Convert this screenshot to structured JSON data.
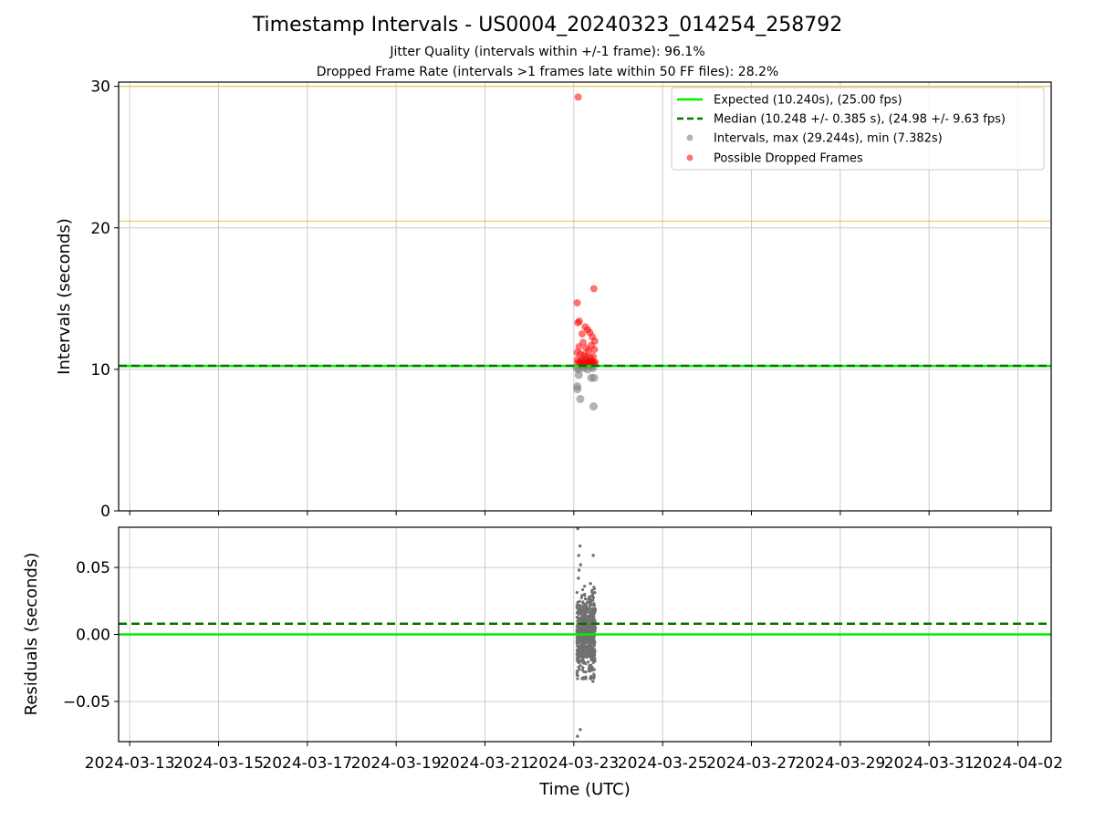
{
  "figure": {
    "title": "Timestamp Intervals - US0004_20240323_014254_258792",
    "subtitle_1": "Jitter Quality (intervals within +/-1 frame): 96.1%",
    "subtitle_2": "Dropped Frame Rate (intervals >1 frames late within 50 FF files): 28.2%",
    "xlabel": "Time (UTC)"
  },
  "colors": {
    "expected": "#00ee00",
    "median": "#007700",
    "intervals": "#808080",
    "dropped": "#ff0000",
    "reference": "#e8c84a",
    "grid": "#cccccc",
    "residuals": "#707070"
  },
  "chart_data": [
    {
      "type": "scatter",
      "ylabel": "Intervals (seconds)",
      "xlim": [
        "2024-03-12T18:00",
        "2024-04-02T18:00"
      ],
      "ylim": [
        0,
        30.3
      ],
      "yticks": [
        0,
        10,
        20,
        30
      ],
      "grid": true,
      "legend_position": "top-right",
      "reference_lines": [
        10.24,
        20.48,
        30.0
      ],
      "expected": 10.24,
      "median": 10.248,
      "legend": [
        "Expected (10.240s), (25.00 fps)",
        "Median (10.248 +/- 0.385 s), (24.98 +/- 9.63 fps)",
        "Intervals, max (29.244s), min (7.382s)",
        "Possible Dropped Frames"
      ],
      "series": [
        {
          "name": "Intervals, max (29.244s), min (7.382s)",
          "points": [
            [
              "2024-03-23T01:40",
              10.1
            ],
            [
              "2024-03-23T02:30",
              10.0
            ],
            [
              "2024-03-23T03:30",
              10.2
            ],
            [
              "2024-03-23T04:30",
              10.3
            ],
            [
              "2024-03-23T05:30",
              10.1
            ],
            [
              "2024-03-23T06:30",
              10.2
            ],
            [
              "2024-03-23T07:30",
              10.0
            ],
            [
              "2024-03-23T08:30",
              10.3
            ],
            [
              "2024-03-23T09:30",
              10.2
            ],
            [
              "2024-03-23T10:20",
              10.1
            ],
            [
              "2024-03-23T01:50",
              8.8
            ],
            [
              "2024-03-23T01:55",
              8.6
            ],
            [
              "2024-03-23T03:30",
              7.9
            ],
            [
              "2024-03-23T10:40",
              7.38
            ],
            [
              "2024-03-23T02:40",
              9.6
            ],
            [
              "2024-03-23T09:30",
              9.4
            ],
            [
              "2024-03-23T11:00",
              9.4
            ],
            [
              "2024-03-23T04:00",
              10.6
            ],
            [
              "2024-03-23T06:00",
              10.7
            ],
            [
              "2024-03-23T08:00",
              10.5
            ]
          ]
        },
        {
          "name": "Possible Dropped Frames",
          "points": [
            [
              "2024-03-23T02:20",
              29.244
            ],
            [
              "2024-03-23T10:50",
              15.7
            ],
            [
              "2024-03-23T01:50",
              14.7
            ],
            [
              "2024-03-23T02:10",
              13.3
            ],
            [
              "2024-03-23T03:00",
              13.4
            ],
            [
              "2024-03-23T06:10",
              13.0
            ],
            [
              "2024-03-23T07:30",
              12.8
            ],
            [
              "2024-03-23T04:30",
              12.5
            ],
            [
              "2024-03-23T08:40",
              12.6
            ],
            [
              "2024-03-23T10:00",
              12.3
            ],
            [
              "2024-03-23T11:20",
              12.0
            ],
            [
              "2024-03-23T05:00",
              11.9
            ],
            [
              "2024-03-23T09:30",
              11.7
            ],
            [
              "2024-03-23T02:50",
              11.6
            ],
            [
              "2024-03-23T06:40",
              11.5
            ],
            [
              "2024-03-23T08:00",
              11.3
            ],
            [
              "2024-03-23T11:10",
              11.4
            ],
            [
              "2024-03-23T01:45",
              11.2
            ],
            [
              "2024-03-23T03:40",
              11.1
            ],
            [
              "2024-03-23T05:30",
              11.0
            ],
            [
              "2024-03-23T07:00",
              10.9
            ],
            [
              "2024-03-23T09:00",
              10.8
            ],
            [
              "2024-03-23T10:30",
              10.9
            ],
            [
              "2024-03-23T02:00",
              10.7
            ],
            [
              "2024-03-23T04:00",
              10.6
            ],
            [
              "2024-03-23T05:50",
              10.5
            ],
            [
              "2024-03-23T07:50",
              10.5
            ],
            [
              "2024-03-23T09:50",
              10.6
            ],
            [
              "2024-03-23T11:30",
              10.5
            ],
            [
              "2024-03-23T03:10",
              10.4
            ],
            [
              "2024-03-23T06:20",
              10.4
            ],
            [
              "2024-03-23T08:20",
              10.4
            ],
            [
              "2024-03-23T10:10",
              10.4
            ],
            [
              "2024-03-23T01:55",
              10.45
            ],
            [
              "2024-03-23T04:50",
              10.45
            ],
            [
              "2024-03-23T07:10",
              10.45
            ],
            [
              "2024-03-23T09:10",
              10.45
            ],
            [
              "2024-03-23T11:05",
              10.45
            ]
          ]
        }
      ]
    },
    {
      "type": "scatter",
      "ylabel": "Residuals (seconds)",
      "xlabel": "Time (UTC)",
      "xlim": [
        "2024-03-12T18:00",
        "2024-04-02T18:00"
      ],
      "ylim": [
        -0.08,
        0.08
      ],
      "yticks": [
        -0.05,
        0.0,
        0.05
      ],
      "ytick_labels": [
        "−0.05",
        "0.00",
        "0.05"
      ],
      "xticks": [
        "2024-03-13",
        "2024-03-15",
        "2024-03-17",
        "2024-03-19",
        "2024-03-21",
        "2024-03-23",
        "2024-03-25",
        "2024-03-27",
        "2024-03-29",
        "2024-03-31",
        "2024-04-02"
      ],
      "grid": true,
      "expected": 0.0,
      "median": 0.008,
      "cluster": {
        "x_start": "2024-03-23T01:40",
        "x_end": "2024-03-23T11:40",
        "core_range": [
          -0.03,
          0.03
        ]
      },
      "outliers": [
        [
          "2024-03-23T02:10",
          0.079
        ],
        [
          "2024-03-23T03:20",
          0.066
        ],
        [
          "2024-03-23T02:40",
          0.059
        ],
        [
          "2024-03-23T10:30",
          0.059
        ],
        [
          "2024-03-23T03:40",
          0.052
        ],
        [
          "2024-03-23T02:50",
          0.048
        ],
        [
          "2024-03-23T02:00",
          -0.076
        ],
        [
          "2024-03-23T03:30",
          -0.071
        ],
        [
          "2024-03-23T10:20",
          -0.035
        ],
        [
          "2024-03-23T09:40",
          -0.032
        ],
        [
          "2024-03-23T01:50",
          -0.03
        ],
        [
          "2024-03-23T04:30",
          -0.033
        ],
        [
          "2024-03-23T02:30",
          0.042
        ],
        [
          "2024-03-23T09:00",
          0.038
        ],
        [
          "2024-03-23T11:00",
          -0.031
        ]
      ]
    }
  ]
}
